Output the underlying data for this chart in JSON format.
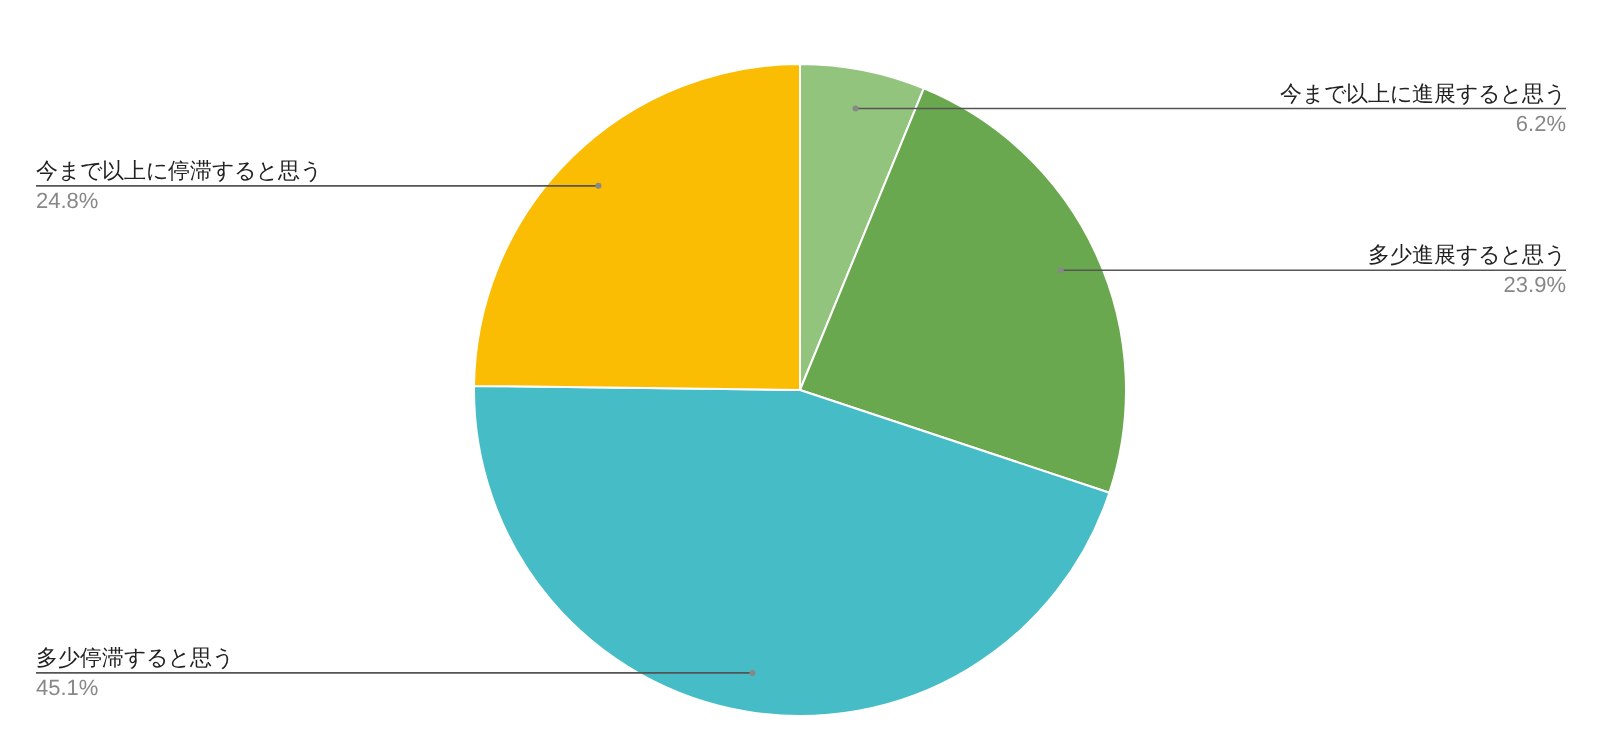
{
  "chart_data": {
    "type": "pie",
    "categories": [
      "今まで以上に進展すると思う",
      "多少進展すると思う",
      "多少停滞すると思う",
      "今まで以上に停滞すると思う"
    ],
    "values": [
      6.2,
      23.9,
      45.1,
      24.8
    ],
    "colors": [
      "#93c47d",
      "#6aa84f",
      "#46bdc6",
      "#fbbc04"
    ],
    "value_labels": [
      "6.2%",
      "23.9%",
      "45.1%",
      "24.8%"
    ],
    "legend": false
  }
}
